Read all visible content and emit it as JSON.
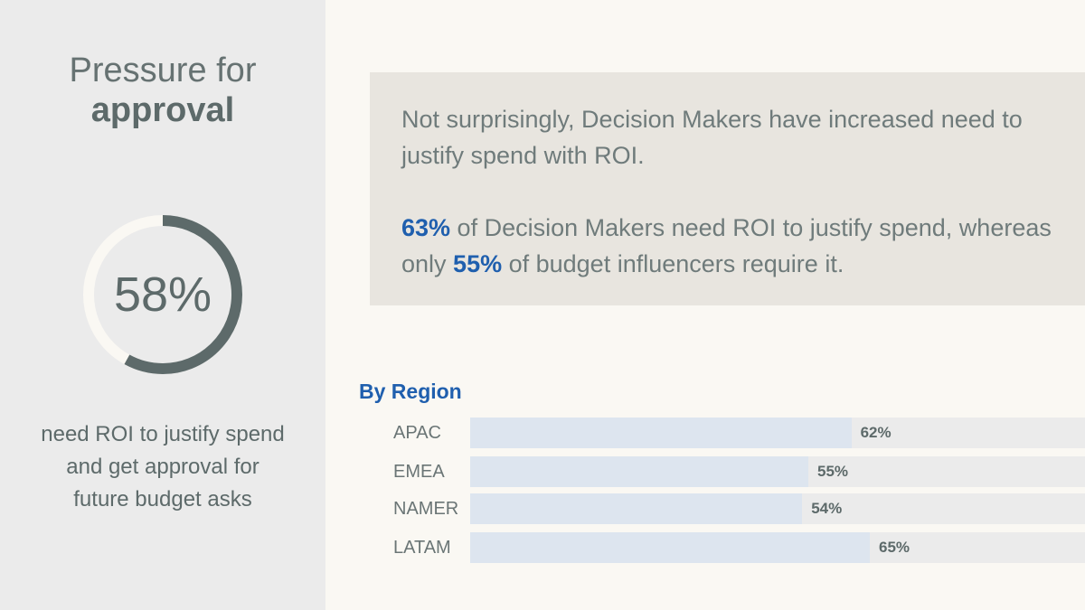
{
  "title": {
    "line1": "Pressure for",
    "line2": "approval"
  },
  "donut": {
    "label": "58%",
    "value": 58,
    "track_color": "#faf8f3",
    "fill_color": "#5d6a6a"
  },
  "caption": {
    "line1": "need ROI to justify spend",
    "line2": "and get approval for",
    "line3": "future budget asks"
  },
  "insight": {
    "p1": "Not surprisingly, Decision Makers have increased need to justify spend with ROI.",
    "p2_highlight1": "63%",
    "p2_text1": " of Decision Makers need ROI to justify spend, whereas only ",
    "p2_highlight2": "55%",
    "p2_text2": " of budget influencers require it."
  },
  "chart_data": {
    "type": "bar",
    "title": "By Region",
    "categories": [
      "APAC",
      "EMEA",
      "NAMER",
      "LATAM"
    ],
    "values": [
      62,
      55,
      54,
      65
    ],
    "value_labels": [
      "62%",
      "55%",
      "54%",
      "65%"
    ],
    "ylim": [
      0,
      100
    ],
    "fill_color": "#dde5ef",
    "track_color": "#ebebeb"
  }
}
